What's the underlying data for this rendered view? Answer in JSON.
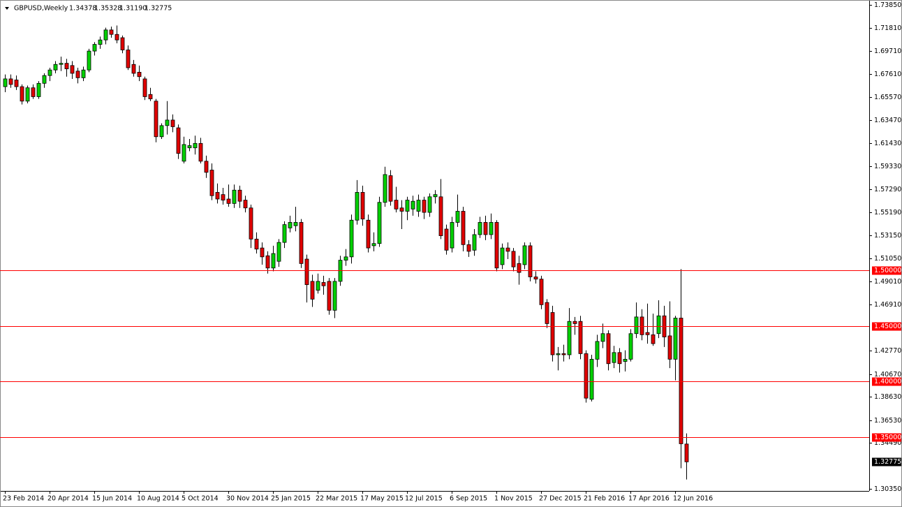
{
  "chart_data": {
    "type": "candlestick",
    "title": "GBPUSD,Weekly",
    "header_values": [
      "1.34378",
      "1.35328",
      "1.31190",
      "1.32775"
    ],
    "up_color": "#00d000",
    "down_color": "#e00000",
    "wick_color": "#000000",
    "level_color": "#ff0000",
    "categories": [
      "23 Feb 2014",
      null,
      null,
      null,
      null,
      null,
      null,
      null,
      "20 Apr 2014",
      null,
      null,
      null,
      null,
      null,
      null,
      null,
      "15 Jun 2014",
      null,
      null,
      null,
      null,
      null,
      null,
      null,
      "10 Aug 2014",
      null,
      null,
      null,
      null,
      null,
      null,
      null,
      "5 Oct 2014",
      null,
      null,
      null,
      null,
      null,
      null,
      null,
      "30 Nov 2014",
      null,
      null,
      null,
      null,
      null,
      null,
      null,
      "25 Jan 2015",
      null,
      null,
      null,
      null,
      null,
      null,
      null,
      "22 Mar 2015",
      null,
      null,
      null,
      null,
      null,
      null,
      null,
      "17 May 2015",
      null,
      null,
      null,
      null,
      null,
      null,
      null,
      "12 Jul 2015",
      null,
      null,
      null,
      null,
      null,
      null,
      null,
      "6 Sep 2015",
      null,
      null,
      null,
      null,
      null,
      null,
      null,
      "1 Nov 2015",
      null,
      null,
      null,
      null,
      null,
      null,
      null,
      "27 Dec 2015",
      null,
      null,
      null,
      null,
      null,
      null,
      null,
      "21 Feb 2016",
      null,
      null,
      null,
      null,
      null,
      null,
      null,
      "17 Apr 2016",
      null,
      null,
      null,
      null,
      null,
      null,
      null,
      "12 Jun 2016",
      null,
      null
    ],
    "open": [
      1.665,
      1.672,
      1.671,
      1.665,
      1.652,
      1.664,
      1.656,
      1.668,
      1.675,
      1.68,
      1.685,
      1.686,
      1.684,
      1.679,
      1.673,
      1.68,
      1.697,
      1.703,
      1.707,
      1.716,
      1.712,
      1.709,
      1.698,
      1.685,
      1.678,
      1.672,
      1.658,
      1.652,
      1.62,
      1.63,
      1.635,
      1.628,
      1.598,
      1.61,
      1.61,
      1.614,
      1.598,
      1.59,
      1.57,
      1.568,
      1.564,
      1.56,
      1.572,
      1.563,
      1.556,
      1.528,
      1.52,
      1.513,
      1.502,
      1.508,
      1.525,
      1.538,
      1.54,
      1.543,
      1.51,
      1.49,
      1.482,
      1.489,
      1.49,
      1.464,
      1.49,
      1.509,
      1.512,
      1.545,
      1.57,
      1.545,
      1.522,
      1.524,
      1.561,
      1.585,
      1.563,
      1.556,
      1.553,
      1.555,
      1.553,
      1.563,
      1.552,
      1.566,
      1.566,
      1.537,
      1.52,
      1.543,
      1.553,
      1.523,
      1.518,
      1.532,
      1.543,
      1.532,
      1.543,
      1.505,
      1.52,
      1.517,
      1.506,
      1.505,
      1.522,
      1.494,
      1.492,
      1.471,
      1.462,
      1.424,
      1.425,
      1.424,
      1.454,
      1.454,
      1.425,
      1.384,
      1.42,
      1.436,
      1.443,
      1.417,
      1.426,
      1.418,
      1.42,
      1.443,
      1.458,
      1.444,
      1.442,
      1.443,
      1.459,
      1.441,
      1.42,
      1.457,
      1.34378
    ],
    "high": [
      1.676,
      1.676,
      1.675,
      1.667,
      1.666,
      1.667,
      1.67,
      1.677,
      1.682,
      1.688,
      1.692,
      1.69,
      1.688,
      1.682,
      1.683,
      1.699,
      1.705,
      1.71,
      1.718,
      1.719,
      1.72,
      1.711,
      1.702,
      1.689,
      1.684,
      1.674,
      1.664,
      1.654,
      1.632,
      1.652,
      1.64,
      1.631,
      1.62,
      1.618,
      1.621,
      1.619,
      1.603,
      1.596,
      1.578,
      1.574,
      1.577,
      1.577,
      1.576,
      1.567,
      1.559,
      1.534,
      1.525,
      1.517,
      1.522,
      1.528,
      1.544,
      1.549,
      1.557,
      1.546,
      1.514,
      1.496,
      1.497,
      1.495,
      1.493,
      1.493,
      1.513,
      1.519,
      1.55,
      1.581,
      1.576,
      1.55,
      1.534,
      1.566,
      1.593,
      1.59,
      1.575,
      1.563,
      1.566,
      1.567,
      1.568,
      1.566,
      1.569,
      1.572,
      1.582,
      1.541,
      1.548,
      1.568,
      1.557,
      1.527,
      1.537,
      1.548,
      1.549,
      1.551,
      1.545,
      1.524,
      1.525,
      1.52,
      1.513,
      1.525,
      1.525,
      1.499,
      1.495,
      1.474,
      1.468,
      1.431,
      1.433,
      1.466,
      1.458,
      1.459,
      1.428,
      1.424,
      1.442,
      1.452,
      1.446,
      1.432,
      1.43,
      1.428,
      1.447,
      1.471,
      1.465,
      1.47,
      1.461,
      1.473,
      1.468,
      1.472,
      1.459,
      1.501,
      1.35328
    ],
    "low": [
      1.66,
      1.664,
      1.662,
      1.649,
      1.65,
      1.654,
      1.654,
      1.664,
      1.67,
      1.677,
      1.679,
      1.674,
      1.672,
      1.668,
      1.67,
      1.678,
      1.693,
      1.699,
      1.703,
      1.709,
      1.704,
      1.695,
      1.68,
      1.674,
      1.67,
      1.653,
      1.652,
      1.615,
      1.618,
      1.622,
      1.624,
      1.6,
      1.596,
      1.607,
      1.604,
      1.596,
      1.583,
      1.563,
      1.56,
      1.559,
      1.557,
      1.556,
      1.556,
      1.552,
      1.52,
      1.515,
      1.505,
      1.497,
      1.499,
      1.503,
      1.52,
      1.534,
      1.535,
      1.502,
      1.471,
      1.467,
      1.479,
      1.478,
      1.46,
      1.457,
      1.486,
      1.504,
      1.506,
      1.541,
      1.54,
      1.516,
      1.517,
      1.521,
      1.557,
      1.558,
      1.552,
      1.537,
      1.545,
      1.549,
      1.548,
      1.546,
      1.548,
      1.56,
      1.528,
      1.514,
      1.516,
      1.539,
      1.517,
      1.512,
      1.513,
      1.529,
      1.527,
      1.528,
      1.499,
      1.501,
      1.51,
      1.499,
      1.487,
      1.501,
      1.49,
      1.488,
      1.465,
      1.448,
      1.418,
      1.41,
      1.418,
      1.42,
      1.442,
      1.42,
      1.381,
      1.382,
      1.413,
      1.43,
      1.41,
      1.412,
      1.408,
      1.409,
      1.418,
      1.439,
      1.437,
      1.434,
      1.432,
      1.439,
      1.431,
      1.412,
      1.401,
      1.322,
      1.3119
    ],
    "close": [
      1.672,
      1.667,
      1.665,
      1.652,
      1.664,
      1.656,
      1.668,
      1.675,
      1.68,
      1.685,
      1.686,
      1.681,
      1.677,
      1.673,
      1.68,
      1.697,
      1.703,
      1.707,
      1.716,
      1.712,
      1.707,
      1.698,
      1.682,
      1.677,
      1.674,
      1.656,
      1.654,
      1.62,
      1.63,
      1.635,
      1.629,
      1.605,
      1.613,
      1.612,
      1.614,
      1.598,
      1.588,
      1.567,
      1.564,
      1.563,
      1.56,
      1.572,
      1.562,
      1.556,
      1.528,
      1.519,
      1.512,
      1.502,
      1.515,
      1.525,
      1.541,
      1.543,
      1.543,
      1.506,
      1.487,
      1.474,
      1.49,
      1.486,
      1.464,
      1.49,
      1.509,
      1.512,
      1.545,
      1.57,
      1.546,
      1.52,
      1.524,
      1.561,
      1.586,
      1.562,
      1.555,
      1.553,
      1.563,
      1.562,
      1.563,
      1.552,
      1.566,
      1.568,
      1.531,
      1.518,
      1.543,
      1.553,
      1.523,
      1.517,
      1.532,
      1.543,
      1.532,
      1.543,
      1.502,
      1.52,
      1.517,
      1.503,
      1.498,
      1.522,
      1.494,
      1.492,
      1.469,
      1.452,
      1.424,
      1.425,
      1.424,
      1.454,
      1.452,
      1.425,
      1.385,
      1.42,
      1.436,
      1.443,
      1.416,
      1.426,
      1.416,
      1.42,
      1.443,
      1.458,
      1.442,
      1.442,
      1.434,
      1.459,
      1.44,
      1.42,
      1.457,
      1.344,
      1.32775
    ],
    "ylim": [
      1.3016,
      1.7429
    ],
    "yticks": [
      {
        "value": 1.7385,
        "label": "1.73850"
      },
      {
        "value": 1.7181,
        "label": "1.71810"
      },
      {
        "value": 1.6971,
        "label": "1.69710"
      },
      {
        "value": 1.6761,
        "label": "1.67610"
      },
      {
        "value": 1.6557,
        "label": "1.65570"
      },
      {
        "value": 1.6347,
        "label": "1.63470"
      },
      {
        "value": 1.6143,
        "label": "1.61430"
      },
      {
        "value": 1.5933,
        "label": "1.59330"
      },
      {
        "value": 1.5729,
        "label": "1.57290"
      },
      {
        "value": 1.5519,
        "label": "1.55190"
      },
      {
        "value": 1.5315,
        "label": "1.53150"
      },
      {
        "value": 1.5105,
        "label": "1.51050"
      },
      {
        "value": 1.4901,
        "label": "1.49010"
      },
      {
        "value": 1.4691,
        "label": "1.46910"
      },
      {
        "value": 1.4277,
        "label": "1.42770"
      },
      {
        "value": 1.4067,
        "label": "1.40670"
      },
      {
        "value": 1.3863,
        "label": "1.38630"
      },
      {
        "value": 1.3653,
        "label": "1.36530"
      },
      {
        "value": 1.3449,
        "label": "1.34490"
      },
      {
        "value": 1.3035,
        "label": "1.30350"
      }
    ],
    "levels": [
      {
        "value": 1.5,
        "label": "1.50000"
      },
      {
        "value": 1.45,
        "label": "1.45000"
      },
      {
        "value": 1.4,
        "label": "1.40000"
      },
      {
        "value": 1.35,
        "label": "1.35000"
      }
    ],
    "current_price": {
      "value": 1.32775,
      "label": "1.32775"
    }
  }
}
